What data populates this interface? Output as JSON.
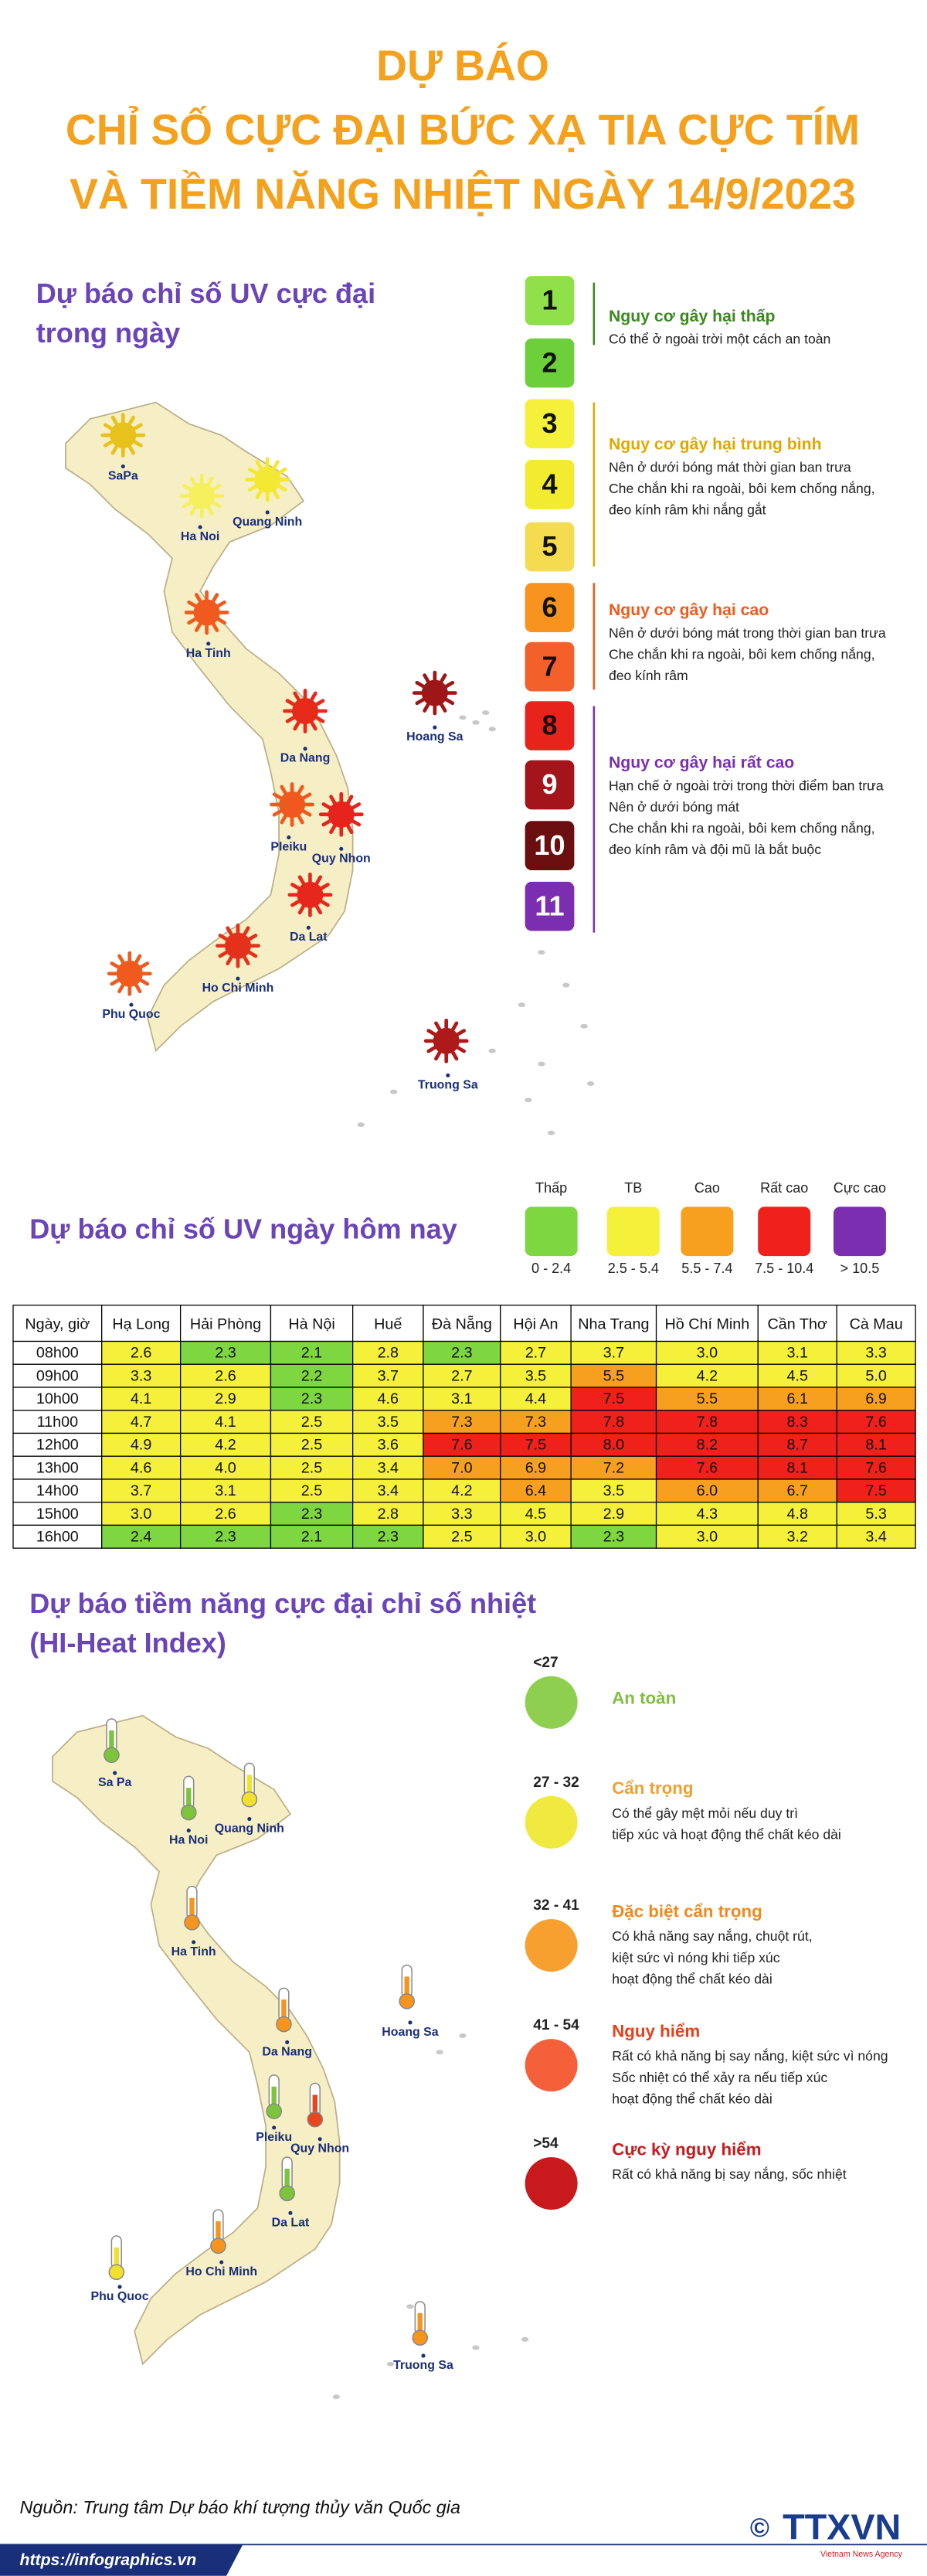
{
  "header": {
    "title_lines": [
      "DỰ BÁO",
      "CHỈ SỐ CỰC ĐẠI BỨC XẠ TIA CỰC TÍM",
      "VÀ TIỀM NĂNG NHIỆT NGÀY 14/9/2023"
    ]
  },
  "uv_max": {
    "title_lines": [
      "Dự báo chỉ số UV cực đại",
      "trong ngày"
    ],
    "locations": [
      {
        "name": "SaPa",
        "color": "#e8c21c"
      },
      {
        "name": "Ha Noi",
        "color": "#f6f05e"
      },
      {
        "name": "Quang Ninh",
        "color": "#f3e832"
      },
      {
        "name": "Ha Tinh",
        "color": "#f05a1e"
      },
      {
        "name": "Hoang Sa",
        "color": "#9e1618"
      },
      {
        "name": "Da Nang",
        "color": "#e62a1a"
      },
      {
        "name": "Pleiku",
        "color": "#f0581f"
      },
      {
        "name": "Quy Nhon",
        "color": "#e6231c"
      },
      {
        "name": "Da Lat",
        "color": "#e6281c"
      },
      {
        "name": "Ho Chi Minh",
        "color": "#e3311c"
      },
      {
        "name": "Phu Quoc",
        "color": "#f05a1e"
      },
      {
        "name": "Truong Sa",
        "color": "#ae1a1a"
      }
    ],
    "scale": [
      {
        "label": "1",
        "color": "#8fe04b"
      },
      {
        "label": "2",
        "color": "#6dcf3a"
      },
      {
        "label": "3",
        "color": "#f5f03a"
      },
      {
        "label": "4",
        "color": "#f2eb2f"
      },
      {
        "label": "5",
        "color": "#f5db4f"
      },
      {
        "label": "6",
        "color": "#f7931e"
      },
      {
        "label": "7",
        "color": "#f4602a"
      },
      {
        "label": "8",
        "color": "#e8231c"
      },
      {
        "label": "9",
        "color": "#a3151b"
      },
      {
        "label": "10",
        "color": "#6b0e10"
      },
      {
        "label": "11",
        "color": "#7b2fb0"
      }
    ],
    "groups": [
      {
        "title": "Nguy cơ gây hại thấp",
        "color": "#3a8a1e",
        "lines": [
          "Có thể ở ngoài trời một cách an toàn"
        ]
      },
      {
        "title": "Nguy cơ gây hại trung bình",
        "color": "#e0a800",
        "lines": [
          "Nên ở dưới bóng mát thời gian ban trưa",
          "Che chắn khi ra ngoài, bôi kem chống nắng,",
          "đeo kính râm khi nắng gắt"
        ]
      },
      {
        "title": "Nguy cơ gây hại cao",
        "color": "#f05a1e",
        "lines": [
          "Nên ở dưới bóng mát trong thời gian ban trưa",
          "Che chắn khi ra ngoài, bôi kem chống nắng,",
          "đeo kính râm"
        ]
      },
      {
        "title": "Nguy cơ gây hại rất cao",
        "color": "#7b2fb0",
        "lines": [
          "Hạn chế ở ngoài trời trong thời điểm ban trưa",
          "Nên ở dưới bóng mát",
          "Che chắn khi ra ngoài, bôi kem chống nắng,",
          "đeo kính râm và đội mũ là bắt buộc"
        ]
      }
    ]
  },
  "uv_today": {
    "title": "Dự báo chỉ số UV ngày hôm nay",
    "levels": [
      {
        "label": "Thấp",
        "range": "0 - 2.4",
        "color": "#7ed640"
      },
      {
        "label": "TB",
        "range": "2.5 - 5.4",
        "color": "#f5f03a"
      },
      {
        "label": "Cao",
        "range": "5.5 - 7.4",
        "color": "#f7a020"
      },
      {
        "label": "Rất cao",
        "range": "7.5 - 10.4",
        "color": "#f0201a"
      },
      {
        "label": "Cực cao",
        "range": "> 10.5",
        "color": "#7b2fb0"
      }
    ],
    "table": {
      "header": [
        "Ngày, giờ",
        "Hạ Long",
        "Hải Phòng",
        "Hà Nội",
        "Huế",
        "Đà Nẵng",
        "Hội An",
        "Nha Trang",
        "Hồ Chí Minh",
        "Cần Thơ",
        "Cà Mau"
      ],
      "rows": [
        [
          "08h00",
          "2.6",
          "2.3",
          "2.1",
          "2.8",
          "2.3",
          "2.7",
          "3.7",
          "3.0",
          "3.1",
          "3.3"
        ],
        [
          "09h00",
          "3.3",
          "2.6",
          "2.2",
          "3.7",
          "2.7",
          "3.5",
          "5.5",
          "4.2",
          "4.5",
          "5.0"
        ],
        [
          "10h00",
          "4.1",
          "2.9",
          "2.3",
          "4.6",
          "3.1",
          "4.4",
          "7.5",
          "5.5",
          "6.1",
          "6.9"
        ],
        [
          "11h00",
          "4.7",
          "4.1",
          "2.5",
          "3.5",
          "7.3",
          "7.3",
          "7.8",
          "7.8",
          "8.3",
          "7.6"
        ],
        [
          "12h00",
          "4.9",
          "4.2",
          "2.5",
          "3.6",
          "7.6",
          "7.5",
          "8.0",
          "8.2",
          "8.7",
          "8.1"
        ],
        [
          "13h00",
          "4.6",
          "4.0",
          "2.5",
          "3.4",
          "7.0",
          "6.9",
          "7.2",
          "7.6",
          "8.1",
          "7.6"
        ],
        [
          "14h00",
          "3.7",
          "3.1",
          "2.5",
          "3.4",
          "4.2",
          "6.4",
          "3.5",
          "6.0",
          "6.7",
          "7.5"
        ],
        [
          "15h00",
          "3.0",
          "2.6",
          "2.3",
          "2.8",
          "3.3",
          "4.5",
          "2.9",
          "4.3",
          "4.8",
          "5.3"
        ],
        [
          "16h00",
          "2.4",
          "2.3",
          "2.1",
          "2.3",
          "2.5",
          "3.0",
          "2.3",
          "3.0",
          "3.2",
          "3.4"
        ]
      ]
    }
  },
  "heat": {
    "title_lines": [
      "Dự báo tiềm năng cực đại chỉ số nhiệt",
      "(HI-Heat Index)"
    ],
    "locations": [
      {
        "name": "Sa Pa",
        "color": "#7cc43c"
      },
      {
        "name": "Quang Ninh",
        "color": "#f2e12c"
      },
      {
        "name": "Ha Noi",
        "color": "#7cc43c"
      },
      {
        "name": "Ha Tinh",
        "color": "#f7941e"
      },
      {
        "name": "Hoang Sa",
        "color": "#f7941e"
      },
      {
        "name": "Da Nang",
        "color": "#f7941e"
      },
      {
        "name": "Pleiku",
        "color": "#7cc43c"
      },
      {
        "name": "Quy Nhon",
        "color": "#e8461c"
      },
      {
        "name": "Da Lat",
        "color": "#7cc43c"
      },
      {
        "name": "Ho Chi Minh",
        "color": "#f7941e"
      },
      {
        "name": "Phu Quoc",
        "color": "#f2e12c"
      },
      {
        "name": "Truong Sa",
        "color": "#f7941e"
      }
    ],
    "levels": [
      {
        "range": "<27",
        "title": "An toàn",
        "color": "#8fcf50",
        "title_color": "#7fbf3f",
        "lines": []
      },
      {
        "range": "27 - 32",
        "title": "Cẩn trọng",
        "color": "#f0ea40",
        "title_color": "#f0a030",
        "lines": [
          "Có thể gây mệt mỏi nếu duy trì",
          "tiếp xúc và hoạt động thể chất kéo dài"
        ]
      },
      {
        "range": "32 - 41",
        "title": "Đặc biệt cẩn trọng",
        "color": "#f7a030",
        "title_color": "#f08a1e",
        "lines": [
          "Có khả năng say nắng, chuột rút,",
          "kiệt sức vì nóng khi tiếp xúc",
          "hoạt động thể chất kéo dài"
        ]
      },
      {
        "range": "41 - 54",
        "title": "Nguy hiểm",
        "color": "#f4603a",
        "title_color": "#e8401c",
        "lines": [
          "Rất có khả năng bị say nắng, kiệt sức vì nóng",
          "Sốc nhiệt có thể xảy ra nếu tiếp xúc",
          "hoạt động thể chất kéo dài"
        ]
      },
      {
        "range": ">54",
        "title": "Cực kỳ nguy hiểm",
        "color": "#c8191c",
        "title_color": "#c8191c",
        "lines": [
          "Rất có khả năng bị say nắng, sốc nhiệt"
        ]
      }
    ]
  },
  "footer": {
    "source": "Nguồn: Trung tâm Dự báo khí tượng thủy văn Quốc gia",
    "url": "https://infographics.vn",
    "copyright": "©",
    "logo": "TTXVN",
    "logo_sub": "Vietnam News Agency"
  }
}
